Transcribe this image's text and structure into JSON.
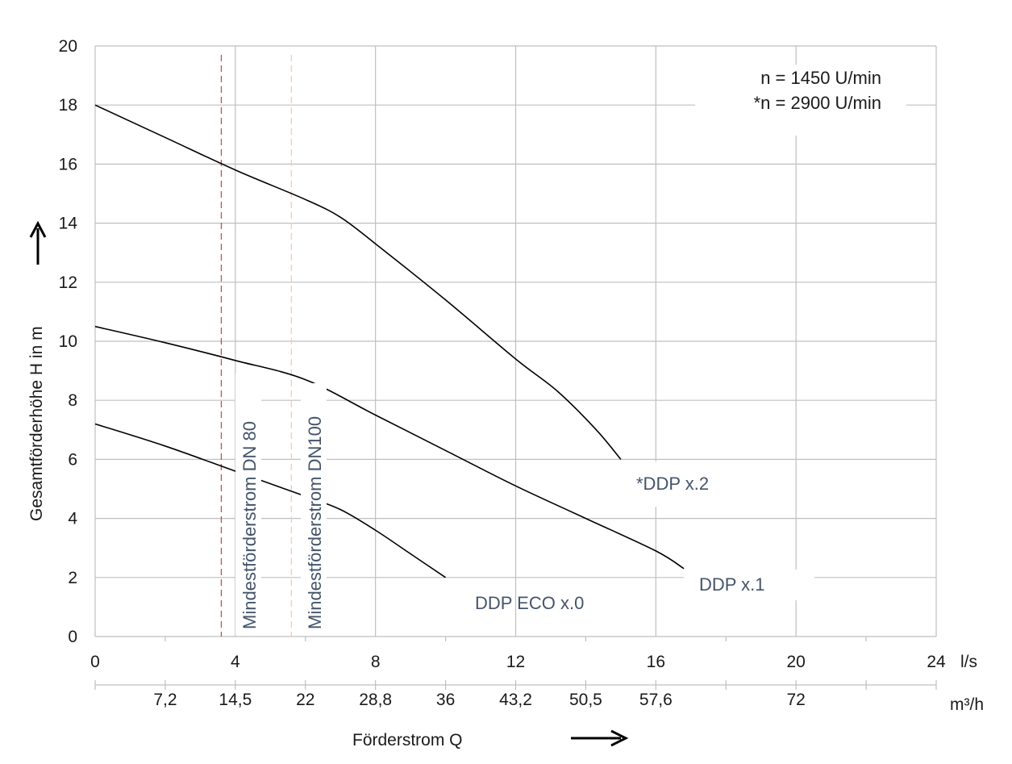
{
  "chart_data": {
    "type": "line",
    "title": "",
    "xlabel": "Förderstrom Q",
    "ylabel": "Gesamtförderhöhe H in m",
    "x_unit": "l/s",
    "x2_unit": "m³/h",
    "xlim": [
      0,
      24
    ],
    "ylim": [
      0,
      20
    ],
    "x_ticks": [
      "0",
      "4",
      "8",
      "12",
      "16",
      "20",
      "24"
    ],
    "y_ticks": [
      "0",
      "2",
      "4",
      "6",
      "8",
      "10",
      "12",
      "14",
      "16",
      "18",
      "20"
    ],
    "x2_ticks": [
      {
        "label": "7,2",
        "x": 2
      },
      {
        "label": "14,5",
        "x": 4
      },
      {
        "label": "22",
        "x": 6
      },
      {
        "label": "28,8",
        "x": 8
      },
      {
        "label": "36",
        "x": 10
      },
      {
        "label": "43,2",
        "x": 12
      },
      {
        "label": "50,5",
        "x": 14
      },
      {
        "label": "57,6",
        "x": 16
      },
      {
        "label": "72",
        "x": 20
      }
    ],
    "x2_minor_ticks": [
      18,
      22
    ],
    "grid": true,
    "series": [
      {
        "name": "*DDP x.2",
        "points": [
          [
            0,
            18.0
          ],
          [
            2,
            16.9
          ],
          [
            4,
            15.8
          ],
          [
            6,
            14.8
          ],
          [
            7,
            14.2
          ],
          [
            8,
            13.3
          ],
          [
            10,
            11.4
          ],
          [
            12,
            9.4
          ],
          [
            13.2,
            8.3
          ],
          [
            14.3,
            7.0
          ],
          [
            15,
            6.0
          ]
        ]
      },
      {
        "name": "DDP x.1",
        "points": [
          [
            0,
            10.5
          ],
          [
            2,
            9.95
          ],
          [
            4,
            9.35
          ],
          [
            6,
            8.7
          ],
          [
            8,
            7.5
          ],
          [
            10,
            6.3
          ],
          [
            12,
            5.1
          ],
          [
            14,
            4.0
          ],
          [
            16,
            2.9
          ],
          [
            16.8,
            2.3
          ]
        ]
      },
      {
        "name": "DDP ECO x.0",
        "points": [
          [
            0,
            7.2
          ],
          [
            2,
            6.45
          ],
          [
            4,
            5.6
          ],
          [
            6,
            4.75
          ],
          [
            7,
            4.3
          ],
          [
            8,
            3.6
          ],
          [
            9,
            2.8
          ],
          [
            10,
            2.0
          ]
        ]
      }
    ],
    "reference_lines": [
      {
        "name": "Mindestförderstrom DN 80",
        "x": 3.6,
        "color": "#c0504d"
      },
      {
        "name": "Mindestförderstrom DN100",
        "x": 5.6,
        "color": "#f8cbad"
      }
    ],
    "annotations": [
      "n = 1450 U/min",
      "*n = 2900 U/min"
    ]
  },
  "labels": {
    "curve_x2": "*DDP x.2",
    "curve_x1": "DDP x.1",
    "curve_x0": "DDP ECO x.0",
    "ref_dn80": "Mindestförderstrom DN 80",
    "ref_dn100": "Mindestförderstrom DN100",
    "speed_1": "n = 1450 U/min",
    "speed_2": "*n = 2900 U/min",
    "unit_ls": "l/s",
    "unit_m3h": "m³/h",
    "x_title": "Förderstrom Q",
    "y_title": "Gesamtförderhöhe H in m"
  },
  "colors": {
    "curve": "#000000",
    "label_text": "#44546a",
    "grid": "#bfbfbf",
    "ref_dn80": "#c0504d",
    "ref_dn100": "#f8cbad"
  }
}
